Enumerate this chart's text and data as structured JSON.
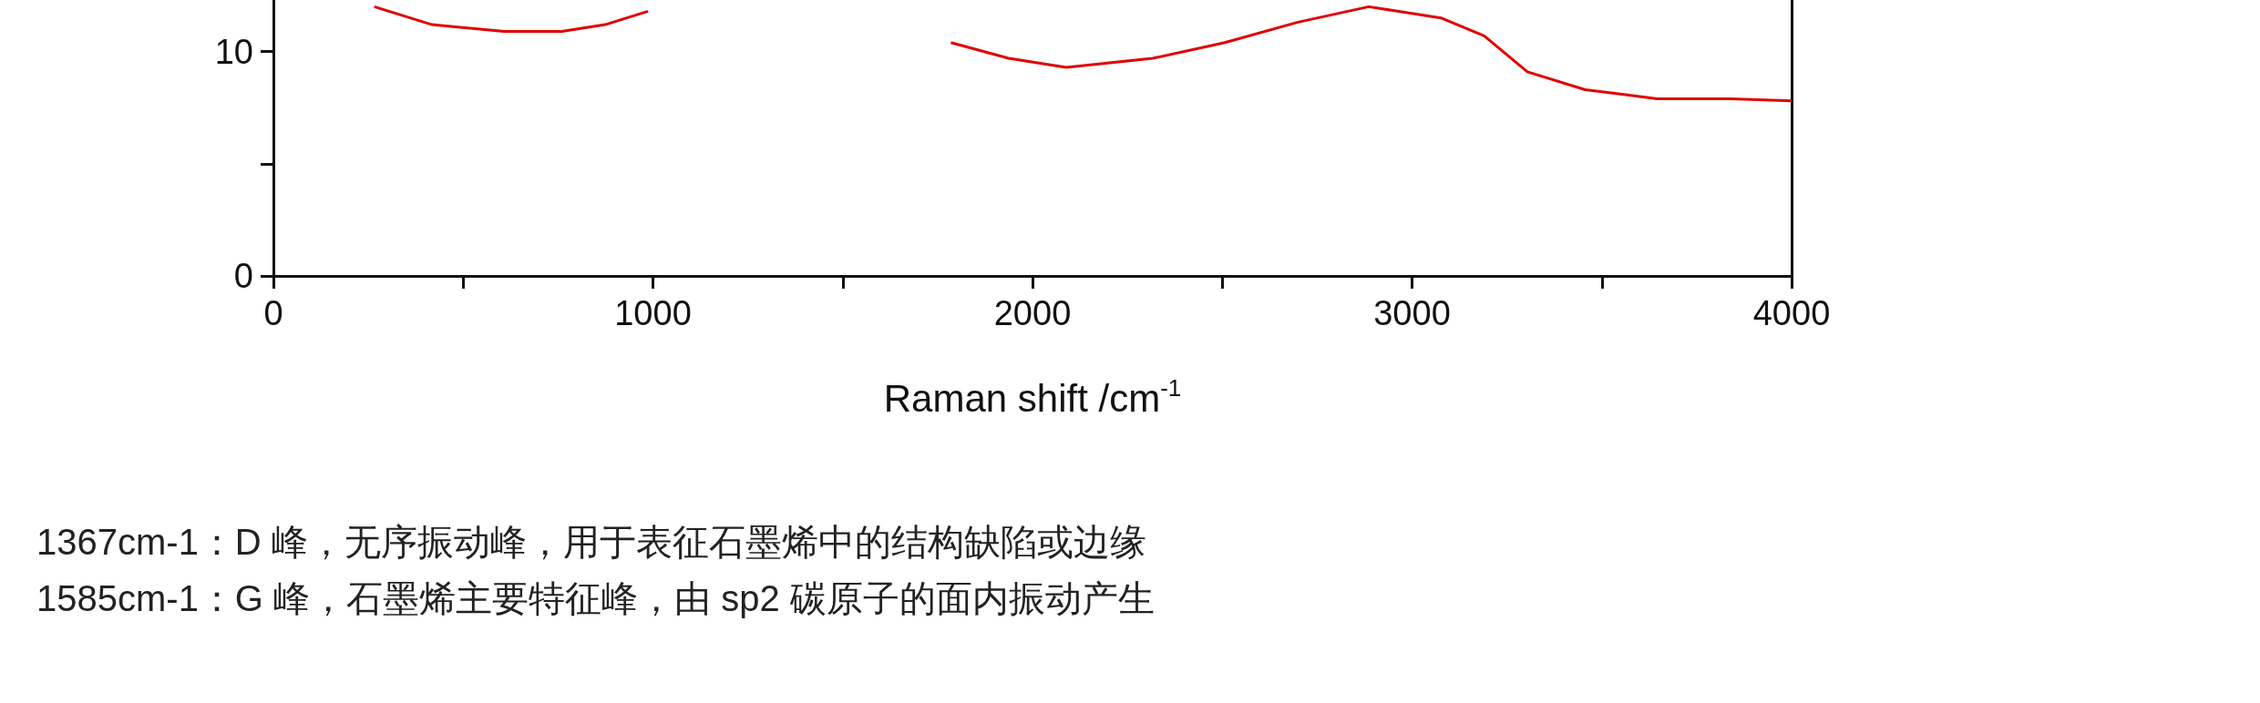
{
  "chart_data": {
    "type": "line",
    "xlabel": "Raman shift /cm$^{-1}$",
    "x": [
      266,
      418,
      608,
      760,
      874,
      987,
      1063,
      1709,
      1785,
      1937,
      2089,
      2317,
      2507,
      2697,
      2886,
      3076,
      3190,
      3304,
      3456,
      3646,
      3837,
      4000
    ],
    "series": [
      {
        "color": "#e00000",
        "values": [
          12.0,
          11.2,
          10.9,
          10.9,
          11.2,
          11.8,
          null,
          null,
          10.4,
          9.7,
          9.3,
          9.7,
          10.4,
          11.3,
          12.0,
          11.5,
          10.7,
          9.1,
          8.3,
          7.9,
          7.9,
          7.8
        ]
      }
    ],
    "xlim": [
      0,
      4000
    ],
    "ylim": [
      0,
      12.3
    ],
    "xticks": [
      0,
      {
        "value": 500,
        "label": null
      },
      1000,
      {
        "value": 1500,
        "label": null
      },
      2000,
      {
        "value": 2500,
        "label": null
      },
      3000,
      {
        "value": 3500,
        "label": null
      },
      4000
    ],
    "yticks": [
      0,
      {
        "value": 5,
        "label": null
      },
      10
    ],
    "grid": false,
    "marker": "none",
    "line_style": "solid",
    "annotations": [
      "1367cm-1：D 峰，无序振动峰，用于表征石墨烯中的结构缺陷或边缘",
      "1585cm-1：G 峰，石墨烯主要特征峰，由 sp2 碳原子的面内振动产生"
    ]
  }
}
